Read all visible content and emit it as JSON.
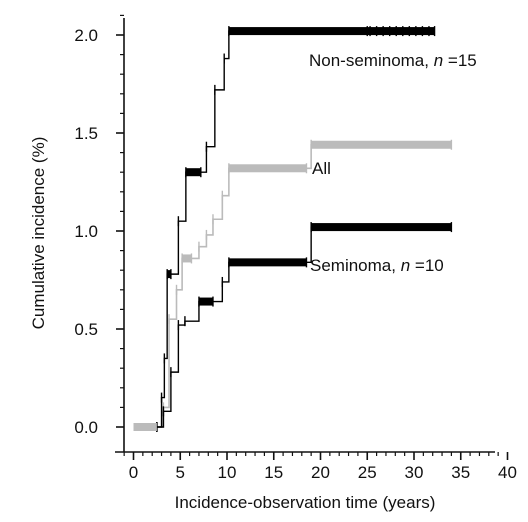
{
  "chart_data": {
    "type": "line",
    "title": "",
    "xlabel": "Incidence-observation time (years)",
    "ylabel": "Cumulative incidence (%)",
    "xlim": [
      -1,
      41
    ],
    "ylim": [
      -0.05,
      2.1
    ],
    "x_ticks": [
      0,
      5,
      10,
      15,
      20,
      25,
      30,
      35,
      40
    ],
    "y_ticks": [
      "0.0",
      "0.5",
      "1.0",
      "1.5",
      "2.0"
    ],
    "grid": false,
    "legend": "none (series labelled directly on the plot)",
    "series": [
      {
        "name": "Non-seminoma, n =15",
        "label_parts": [
          "Non-seminoma, ",
          "n",
          " =15"
        ],
        "color": "#000000",
        "style": "step, heavy censoring ticks",
        "x": [
          0,
          2.5,
          3.0,
          3.3,
          3.6,
          4.0,
          4.8,
          5.6,
          7.2,
          7.8,
          8.7,
          9.7,
          10.2,
          25,
          32.2
        ],
        "y": [
          0,
          0,
          0.15,
          0.35,
          0.78,
          0.78,
          1.05,
          1.3,
          1.3,
          1.43,
          1.72,
          1.88,
          2.02,
          2.02,
          2.02
        ]
      },
      {
        "name": "All",
        "label_parts": [
          "All",
          "",
          ""
        ],
        "color": "#bbbbbb",
        "style": "step, grey",
        "x": [
          0,
          2.5,
          3.2,
          3.8,
          4.6,
          5.2,
          6.2,
          7.0,
          7.8,
          8.5,
          9.5,
          10.2,
          18.5,
          19.0,
          34.0
        ],
        "y": [
          0,
          0,
          0.1,
          0.55,
          0.7,
          0.86,
          0.86,
          0.92,
          0.98,
          1.06,
          1.18,
          1.32,
          1.32,
          1.44,
          1.44
        ]
      },
      {
        "name": "Seminoma, n =10",
        "label_parts": [
          "Seminoma, ",
          "n",
          " =10"
        ],
        "color": "#000000",
        "style": "step, heavy censoring ticks",
        "x": [
          0,
          2.5,
          3.2,
          4.0,
          4.8,
          5.5,
          7.0,
          8.5,
          9.5,
          10.2,
          18.5,
          19.0,
          34.0
        ],
        "y": [
          0,
          0,
          0.08,
          0.28,
          0.52,
          0.54,
          0.64,
          0.64,
          0.74,
          0.84,
          0.84,
          1.02,
          1.02
        ]
      }
    ]
  }
}
